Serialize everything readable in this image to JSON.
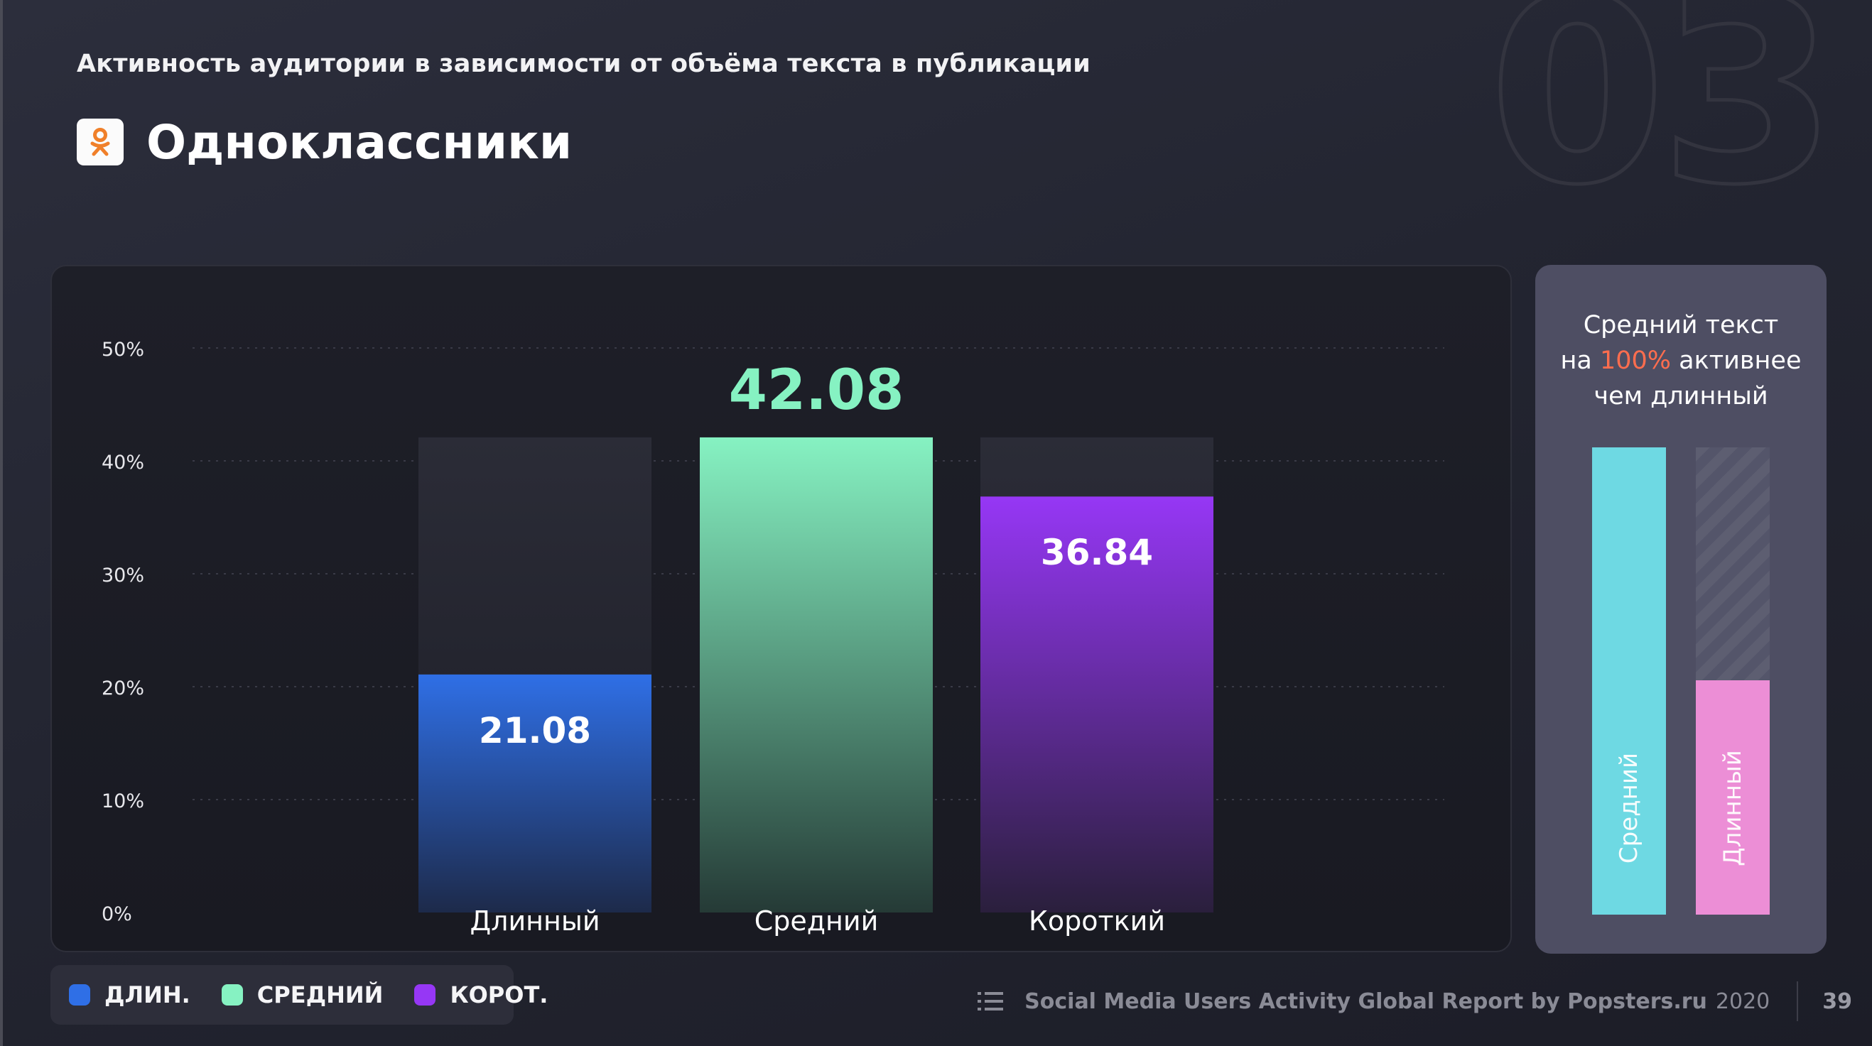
{
  "header": {
    "subtitle": "Активность аудитории в зависимости от объёма текста в публикации",
    "platform": "Одноклассники",
    "section_number": "03"
  },
  "chart_data": {
    "type": "bar",
    "categories": [
      "Длинный",
      "Средний",
      "Короткий"
    ],
    "values": [
      21.08,
      42.08,
      36.84
    ],
    "value_labels": [
      "21.08",
      "42.08",
      "36.84"
    ],
    "y_ticks": [
      "0%",
      "10%",
      "20%",
      "30%",
      "40%",
      "50%"
    ],
    "ylim": [
      0,
      50
    ],
    "grid": true,
    "colors": [
      "#2f6fe6",
      "#86f2c2",
      "#9637f5"
    ],
    "background_ceiling": 42.08
  },
  "side_panel": {
    "line1": "Средний текст",
    "line2_prefix": "на ",
    "line2_highlight": "100%",
    "line2_suffix": " активнее",
    "line3": "чем длинный",
    "bars": [
      {
        "label": "Средний",
        "value": 42.08,
        "color": "#6ed9e3"
      },
      {
        "label": "Длинный",
        "value": 21.08,
        "color": "#ec8ed6"
      }
    ]
  },
  "legend": {
    "items": [
      {
        "label": "ДЛИН.",
        "color": "#2f6fe6"
      },
      {
        "label": "СРЕДНИЙ",
        "color": "#86f2c2"
      },
      {
        "label": "КОРОТ.",
        "color": "#9637f5"
      }
    ]
  },
  "footer": {
    "report": "Social Media Users Activity Global Report by Popsters.ru",
    "year": "2020",
    "page": "39"
  }
}
